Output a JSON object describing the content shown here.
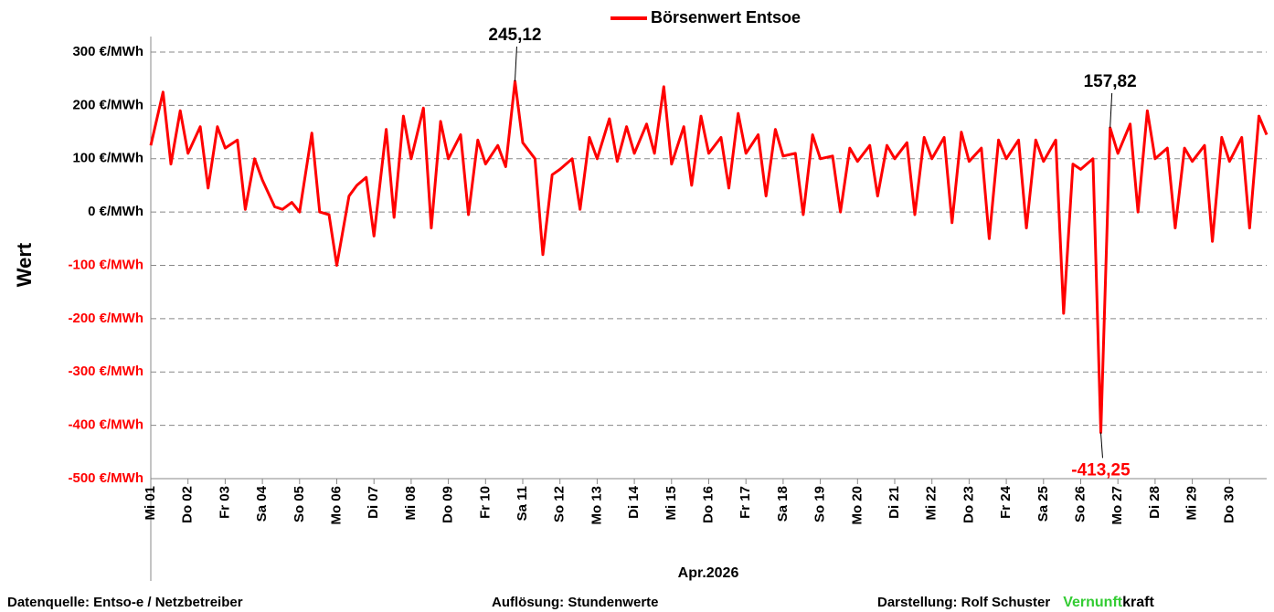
{
  "chart_data": {
    "type": "line",
    "legend": "top",
    "grid": true,
    "y_label": "Wert",
    "x_label": "Apr.2026",
    "x": [
      0,
      0.33,
      0.54,
      0.79,
      1,
      1.33,
      1.54,
      1.79,
      2,
      2.33,
      2.54,
      2.79,
      3,
      3.33,
      3.54,
      3.79,
      4,
      4.33,
      4.54,
      4.79,
      5,
      5.33,
      5.54,
      5.79,
      6,
      6.33,
      6.54,
      6.79,
      7,
      7.33,
      7.54,
      7.79,
      8,
      8.33,
      8.54,
      8.79,
      9,
      9.33,
      9.54,
      9.79,
      10,
      10.33,
      10.54,
      10.79,
      11,
      11.33,
      11.54,
      11.79,
      12,
      12.33,
      12.54,
      12.79,
      13,
      13.33,
      13.54,
      13.79,
      14,
      14.33,
      14.54,
      14.79,
      15,
      15.33,
      15.54,
      15.79,
      16,
      16.33,
      16.54,
      16.79,
      17,
      17.33,
      17.54,
      17.79,
      18,
      18.33,
      18.54,
      18.79,
      19,
      19.33,
      19.54,
      19.79,
      20,
      20.33,
      20.54,
      20.79,
      21,
      21.33,
      21.54,
      21.79,
      22,
      22.33,
      22.54,
      22.79,
      23,
      23.33,
      23.54,
      23.79,
      24,
      24.33,
      24.54,
      24.79,
      25,
      25.33,
      25.54,
      25.79,
      26,
      26.33,
      26.54,
      26.79,
      27,
      27.33,
      27.54,
      27.79,
      28,
      28.33,
      28.54,
      28.79,
      29,
      29.33,
      29.54,
      29.79,
      30
    ],
    "series": [
      {
        "name": "Börsenwert Entsoe",
        "color": "#ff0000",
        "values": [
          125,
          225,
          90,
          190,
          110,
          160,
          45,
          160,
          120,
          135,
          5,
          100,
          60,
          10,
          5,
          18,
          0,
          148,
          0,
          -5,
          -100,
          30,
          50,
          65,
          -45,
          155,
          -10,
          180,
          100,
          195,
          -30,
          170,
          100,
          145,
          -5,
          135,
          90,
          125,
          85,
          245.12,
          130,
          100,
          -80,
          70,
          80,
          100,
          5,
          140,
          100,
          175,
          95,
          160,
          110,
          165,
          110,
          235,
          90,
          160,
          50,
          180,
          110,
          140,
          45,
          185,
          110,
          145,
          30,
          155,
          105,
          110,
          -5,
          145,
          100,
          105,
          0,
          120,
          95,
          125,
          30,
          125,
          100,
          130,
          -5,
          140,
          100,
          140,
          -20,
          150,
          95,
          120,
          -50,
          135,
          100,
          135,
          -30,
          135,
          95,
          135,
          -190,
          90,
          80,
          100,
          -413.25,
          157.82,
          110,
          165,
          0,
          190,
          100,
          120,
          -30,
          120,
          95,
          125,
          -55,
          140,
          95,
          140,
          -30,
          180,
          145
        ]
      }
    ],
    "annotations": [
      {
        "label": "245,12",
        "x": 9.79,
        "y": 245.12,
        "color": "#000000"
      },
      {
        "label": "157,82",
        "x": 25.79,
        "y": 157.82,
        "color": "#000000"
      },
      {
        "label": "-413,25",
        "x": 25.54,
        "y": -413.25,
        "color": "#ff0000"
      }
    ],
    "xlim": [
      0,
      30
    ],
    "xticks": [
      {
        "value": 0,
        "label": "Mi 01"
      },
      {
        "value": 1,
        "label": "Do 02"
      },
      {
        "value": 2,
        "label": "Fr 03"
      },
      {
        "value": 3,
        "label": "Sa 04"
      },
      {
        "value": 4,
        "label": "So 05"
      },
      {
        "value": 5,
        "label": "Mo 06"
      },
      {
        "value": 6,
        "label": "Di 07"
      },
      {
        "value": 7,
        "label": "Mi 08"
      },
      {
        "value": 8,
        "label": "Do 09"
      },
      {
        "value": 9,
        "label": "Fr 10"
      },
      {
        "value": 10,
        "label": "Sa 11"
      },
      {
        "value": 11,
        "label": "So 12"
      },
      {
        "value": 12,
        "label": "Mo 13"
      },
      {
        "value": 13,
        "label": "Di 14"
      },
      {
        "value": 14,
        "label": "Mi 15"
      },
      {
        "value": 15,
        "label": "Do 16"
      },
      {
        "value": 16,
        "label": "Fr 17"
      },
      {
        "value": 17,
        "label": "Sa 18"
      },
      {
        "value": 18,
        "label": "So 19"
      },
      {
        "value": 19,
        "label": "Mo 20"
      },
      {
        "value": 20,
        "label": "Di 21"
      },
      {
        "value": 21,
        "label": "Mi 22"
      },
      {
        "value": 22,
        "label": "Do 23"
      },
      {
        "value": 23,
        "label": "Fr 24"
      },
      {
        "value": 24,
        "label": "Sa 25"
      },
      {
        "value": 25,
        "label": "So 26"
      },
      {
        "value": 26,
        "label": "Mo 27"
      },
      {
        "value": 27,
        "label": "Di 28"
      },
      {
        "value": 28,
        "label": "Mi 29"
      },
      {
        "value": 29,
        "label": "Do 30"
      }
    ],
    "ylim": [
      -500,
      300
    ],
    "yticks": [
      {
        "value": 300,
        "label": "300 €/MWh"
      },
      {
        "value": 200,
        "label": "200 €/MWh"
      },
      {
        "value": 100,
        "label": "100 €/MWh"
      },
      {
        "value": 0,
        "label": "0 €/MWh"
      },
      {
        "value": -100,
        "label": "-100 €/MWh"
      },
      {
        "value": -200,
        "label": "-200 €/MWh"
      },
      {
        "value": -300,
        "label": "-300 €/MWh"
      },
      {
        "value": -400,
        "label": "-400 €/MWh"
      },
      {
        "value": -500,
        "label": "-500 €/MWh"
      }
    ],
    "footer": {
      "source": "Datenquelle: Entso-e  / Netzbetreiber",
      "resolution": "Auflösung: Stundenwerte",
      "author": "Darstellung: Rolf Schuster",
      "brand_green": "Vernunft",
      "brand_rest": "kraft"
    }
  }
}
